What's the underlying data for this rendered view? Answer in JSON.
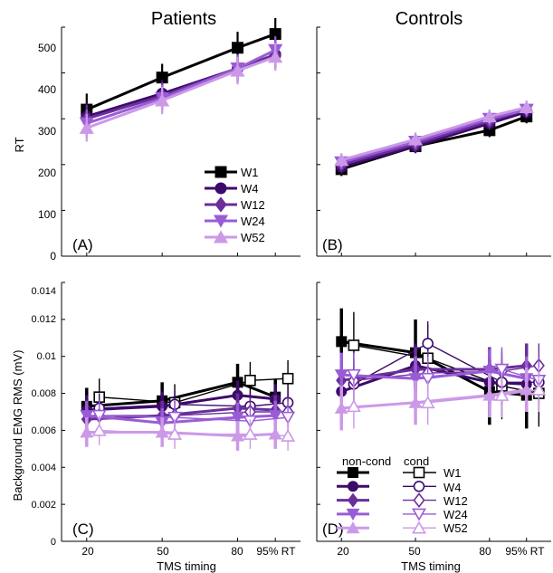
{
  "chart_data": [
    {
      "id": "A",
      "type": "line",
      "title": "Patients",
      "panel_label": "(A)",
      "xlabel": "",
      "ylabel": "RT",
      "ylim": [
        0,
        500
      ],
      "yticks": [
        "0",
        "100",
        "200",
        "300",
        "400",
        "500"
      ],
      "x": [
        20,
        50,
        80,
        95
      ],
      "xlim": [
        10,
        105
      ],
      "series": [
        {
          "name": "W1",
          "color": "#000000",
          "marker": "square",
          "values": [
            320,
            390,
            455,
            485
          ],
          "err": [
            35,
            30,
            35,
            35
          ]
        },
        {
          "name": "W4",
          "color": "#3d0a6b",
          "marker": "circle",
          "values": [
            305,
            355,
            410,
            440
          ],
          "err": [
            30,
            30,
            30,
            30
          ]
        },
        {
          "name": "W12",
          "color": "#6a2f9a",
          "marker": "diamond",
          "values": [
            300,
            350,
            410,
            440
          ],
          "err": [
            30,
            30,
            30,
            30
          ]
        },
        {
          "name": "W24",
          "color": "#9a5cd6",
          "marker": "triangle-down",
          "values": [
            290,
            345,
            410,
            450
          ],
          "err": [
            30,
            30,
            30,
            30
          ]
        },
        {
          "name": "W52",
          "color": "#cc99e8",
          "marker": "triangle-up",
          "values": [
            280,
            340,
            405,
            435
          ],
          "err": [
            30,
            30,
            30,
            30
          ]
        }
      ],
      "legend": {
        "placement": "bottom-right",
        "entries": [
          "W1",
          "W4",
          "W12",
          "W24",
          "W52"
        ]
      },
      "grid": false
    },
    {
      "id": "B",
      "type": "line",
      "title": "Controls",
      "panel_label": "(B)",
      "xlabel": "",
      "ylabel": "",
      "ylim": [
        0,
        500
      ],
      "x": [
        20,
        50,
        80,
        95
      ],
      "xlim": [
        10,
        105
      ],
      "series": [
        {
          "name": "W1",
          "color": "#000000",
          "marker": "square",
          "values": [
            190,
            240,
            275,
            305
          ],
          "err": [
            15,
            15,
            15,
            15
          ]
        },
        {
          "name": "W4",
          "color": "#3d0a6b",
          "marker": "circle",
          "values": [
            195,
            240,
            290,
            315
          ],
          "err": [
            15,
            15,
            15,
            15
          ]
        },
        {
          "name": "W12",
          "color": "#6a2f9a",
          "marker": "diamond",
          "values": [
            200,
            245,
            295,
            320
          ],
          "err": [
            15,
            15,
            15,
            15
          ]
        },
        {
          "name": "W24",
          "color": "#9a5cd6",
          "marker": "triangle-down",
          "values": [
            205,
            250,
            300,
            320
          ],
          "err": [
            15,
            15,
            15,
            15
          ]
        },
        {
          "name": "W52",
          "color": "#cc99e8",
          "marker": "triangle-up",
          "values": [
            210,
            255,
            305,
            325
          ],
          "err": [
            15,
            15,
            15,
            15
          ]
        }
      ],
      "grid": false
    },
    {
      "id": "C",
      "type": "line",
      "title": "",
      "panel_label": "(C)",
      "xlabel": "TMS timing",
      "ylabel": "Background EMG RMS (mV)",
      "ylim": [
        0,
        0.014
      ],
      "yticks": [
        "0",
        "0.002",
        "0.004",
        "0.006",
        "0.008",
        "0.01",
        "0.012",
        "0.014"
      ],
      "x": [
        20,
        50,
        80,
        95
      ],
      "x_cond": [
        25,
        55,
        85,
        100
      ],
      "xlim": [
        10,
        105
      ],
      "xtick_labels": [
        "20",
        "50",
        "80",
        "95% RT"
      ],
      "series": [
        {
          "name": "W1",
          "color": "#000000",
          "noncond": [
            0.0073,
            0.0076,
            0.0086,
            0.0078
          ],
          "cond": [
            0.0078,
            0.0075,
            0.0087,
            0.0088
          ],
          "err": [
            0.001,
            0.001,
            0.001,
            0.001
          ]
        },
        {
          "name": "W4",
          "color": "#3d0a6b",
          "noncond": [
            0.0071,
            0.0073,
            0.0079,
            0.0077
          ],
          "cond": [
            0.0072,
            0.0074,
            0.0073,
            0.0075
          ],
          "err": [
            0.0008,
            0.0008,
            0.0008,
            0.0008
          ]
        },
        {
          "name": "W12",
          "color": "#6a2f9a",
          "noncond": [
            0.0066,
            0.0068,
            0.0072,
            0.0071
          ],
          "cond": [
            0.0068,
            0.0068,
            0.007,
            0.007
          ],
          "err": [
            0.0008,
            0.0008,
            0.0008,
            0.0008
          ]
        },
        {
          "name": "W24",
          "color": "#9a5cd6",
          "noncond": [
            0.0068,
            0.0064,
            0.0067,
            0.0068
          ],
          "cond": [
            0.0068,
            0.0067,
            0.0065,
            0.0067
          ],
          "err": [
            0.0008,
            0.0008,
            0.0008,
            0.0008
          ]
        },
        {
          "name": "W52",
          "color": "#cc99e8",
          "noncond": [
            0.0059,
            0.0059,
            0.0057,
            0.0058
          ],
          "cond": [
            0.006,
            0.0058,
            0.0058,
            0.0057
          ],
          "err": [
            0.0008,
            0.0008,
            0.0008,
            0.0008
          ]
        }
      ],
      "grid": false
    },
    {
      "id": "D",
      "type": "line",
      "title": "",
      "panel_label": "(D)",
      "xlabel": "TMS timing",
      "ylabel": "",
      "ylim": [
        0,
        0.014
      ],
      "x": [
        20,
        50,
        80,
        95
      ],
      "x_cond": [
        25,
        55,
        85,
        100
      ],
      "xlim": [
        10,
        105
      ],
      "xtick_labels": [
        "20",
        "50",
        "80",
        "95% RT"
      ],
      "series": [
        {
          "name": "W1",
          "color": "#000000",
          "noncond": [
            0.0108,
            0.0102,
            0.0081,
            0.0079
          ],
          "cond": [
            0.0106,
            0.0099,
            0.0084,
            0.008
          ],
          "err": [
            0.0018,
            0.0018,
            0.0018,
            0.0018
          ]
        },
        {
          "name": "W4",
          "color": "#3d0a6b",
          "noncond": [
            0.0081,
            0.0095,
            0.0086,
            0.0085
          ],
          "cond": [
            0.0085,
            0.0107,
            0.0086,
            0.0086
          ],
          "err": [
            0.0012,
            0.0012,
            0.0012,
            0.0012
          ]
        },
        {
          "name": "W12",
          "color": "#6a2f9a",
          "noncond": [
            0.0087,
            0.0093,
            0.0093,
            0.0095
          ],
          "cond": [
            0.0087,
            0.0091,
            0.0092,
            0.0095
          ],
          "err": [
            0.0012,
            0.0012,
            0.0012,
            0.0012
          ]
        },
        {
          "name": "W24",
          "color": "#9a5cd6",
          "noncond": [
            0.009,
            0.0088,
            0.0092,
            0.0088
          ],
          "cond": [
            0.009,
            0.0088,
            0.0093,
            0.0087
          ],
          "err": [
            0.0012,
            0.0012,
            0.0012,
            0.0012
          ]
        },
        {
          "name": "W52",
          "color": "#cc99e8",
          "noncond": [
            0.0072,
            0.0075,
            0.0079,
            0.0082
          ],
          "cond": [
            0.0073,
            0.0075,
            0.0079,
            0.0082
          ],
          "err": [
            0.0012,
            0.0012,
            0.0012,
            0.0012
          ]
        }
      ],
      "legend": {
        "placement": "bottom-left",
        "header_noncond": "non-cond",
        "header_cond": "cond",
        "entries": [
          "W1",
          "W4",
          "W12",
          "W24",
          "W52"
        ]
      },
      "grid": false
    }
  ]
}
